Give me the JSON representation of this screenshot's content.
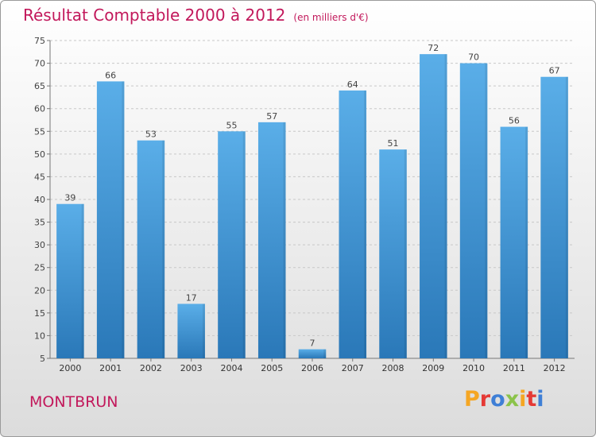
{
  "header": {
    "title": "Résultat Comptable 2000 à 2012",
    "subtitle": "(en milliers d'€)"
  },
  "footer": {
    "place": "MONTBRUN",
    "brand": "Proxiti",
    "brand_colors": [
      "#f5a623",
      "#e53935",
      "#3f7fd6",
      "#8bc34a",
      "#f5a623",
      "#e53935",
      "#3f7fd6"
    ]
  },
  "chart_data": {
    "type": "bar",
    "title": "Résultat Comptable 2000 à 2012",
    "subtitle": "(en milliers d'€)",
    "xlabel": "",
    "ylabel": "",
    "categories": [
      "2000",
      "2001",
      "2002",
      "2003",
      "2004",
      "2005",
      "2006",
      "2007",
      "2008",
      "2009",
      "2010",
      "2011",
      "2012"
    ],
    "values": [
      39,
      66,
      53,
      17,
      55,
      57,
      7,
      64,
      51,
      72,
      70,
      56,
      67
    ],
    "ylim": [
      5,
      75
    ],
    "yticks": [
      5,
      10,
      15,
      20,
      25,
      30,
      35,
      40,
      45,
      50,
      55,
      60,
      65,
      70,
      75
    ],
    "grid": true,
    "bar_color_top": "#5aaee8",
    "bar_color_bottom": "#2a78b8"
  }
}
